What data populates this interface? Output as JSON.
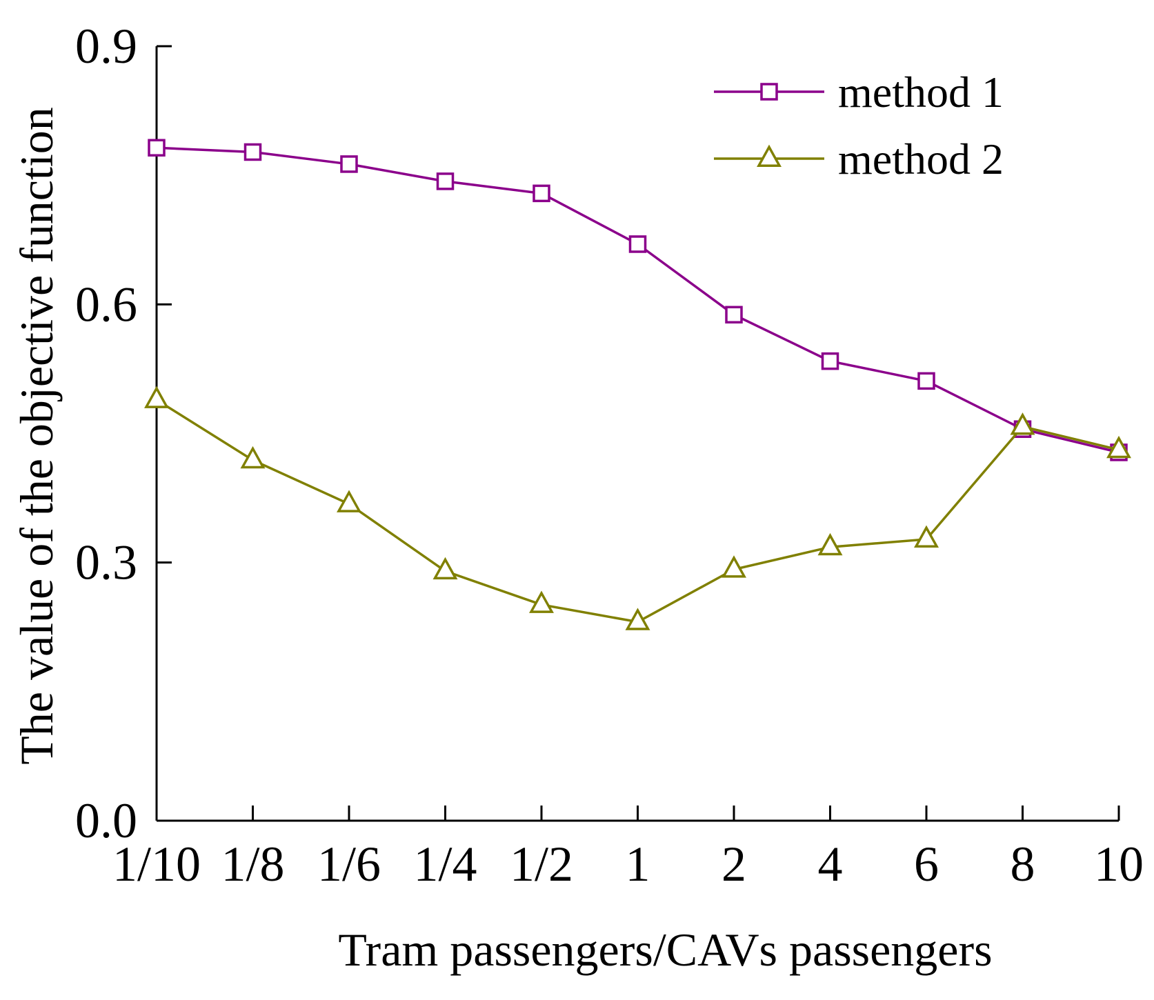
{
  "chart_data": {
    "type": "line",
    "title": "",
    "xlabel": "Tram passengers/CAVs passengers",
    "ylabel": "The value of the objective function",
    "categories": [
      "1/10",
      "1/8",
      "1/6",
      "1/4",
      "1/2",
      "1",
      "2",
      "4",
      "6",
      "8",
      "10"
    ],
    "ylim": [
      0.0,
      0.9
    ],
    "yticks": [
      "0.0",
      "0.3",
      "0.6",
      "0.9"
    ],
    "grid": false,
    "legend_position": "top-right",
    "series": [
      {
        "name": "method 1",
        "color": "#8B008B",
        "marker": "square",
        "values": [
          0.782,
          0.777,
          0.763,
          0.743,
          0.729,
          0.67,
          0.588,
          0.534,
          0.511,
          0.455,
          0.428
        ]
      },
      {
        "name": "method 2",
        "color": "#808000",
        "marker": "triangle",
        "values": [
          0.489,
          0.419,
          0.368,
          0.29,
          0.251,
          0.231,
          0.292,
          0.318,
          0.327,
          0.458,
          0.431
        ]
      }
    ]
  }
}
